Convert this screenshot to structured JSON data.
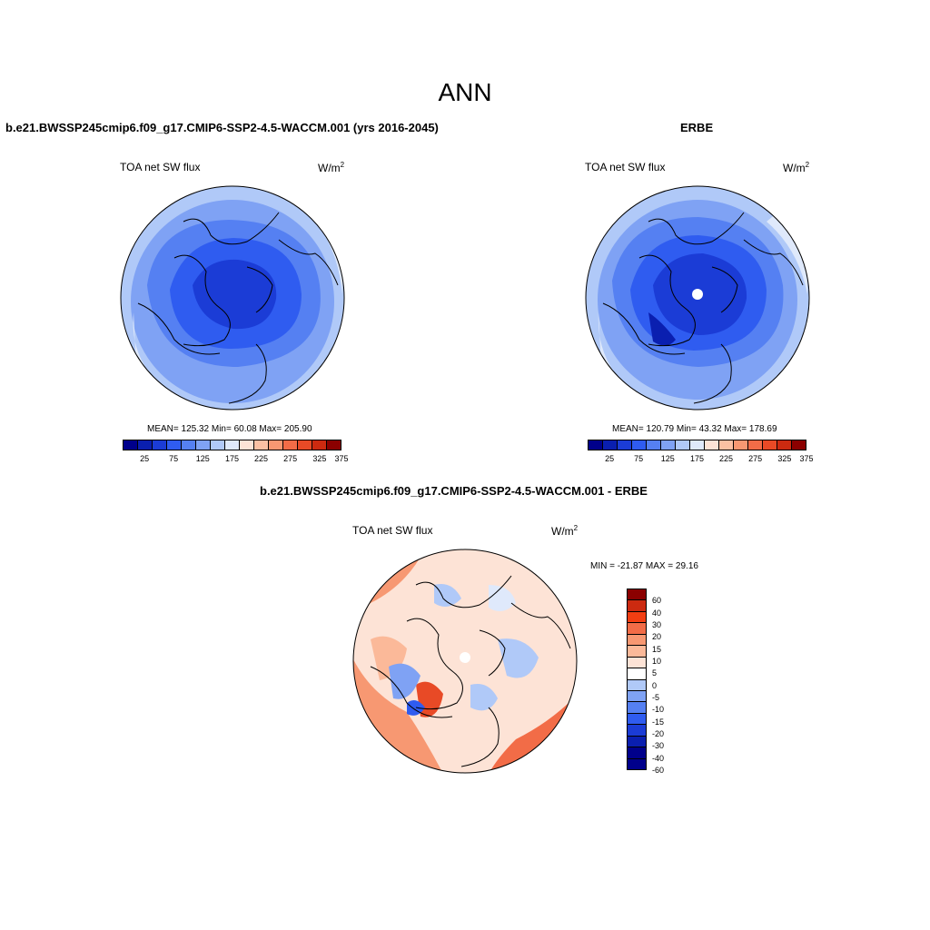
{
  "title": "ANN",
  "panels": [
    {
      "header": "b.e21.BWSSP245cmip6.f09_g17.CMIP6-SSP2-4.5-WACCM.001 (yrs 2016-2045)",
      "variable": "TOA net SW flux",
      "units_base": "W/m",
      "units_exp": "2",
      "stats": "MEAN= 125.32  Min=  60.08  Max= 205.90"
    },
    {
      "header": "ERBE",
      "variable": "TOA net SW flux",
      "units_base": "W/m",
      "units_exp": "2",
      "stats": "MEAN= 120.79  Min=  43.32  Max= 178.69"
    },
    {
      "header": "b.e21.BWSSP245cmip6.f09_g17.CMIP6-SSP2-4.5-WACCM.001 - ERBE",
      "variable": "TOA net SW flux",
      "units_base": "W/m",
      "units_exp": "2",
      "stats": "MIN = -21.87 MAX =  29.16"
    }
  ],
  "colorbar_top": {
    "colors": [
      "#00008b",
      "#0a1fb0",
      "#1b3cd6",
      "#2f5cf0",
      "#5580f2",
      "#7fa2f4",
      "#b0c9f8",
      "#dfe9fb",
      "#fde3d6",
      "#fbc0a3",
      "#f79872",
      "#f26c47",
      "#e84a26",
      "#cc2a10",
      "#8b0000"
    ],
    "labels": [
      "25",
      "75",
      "125",
      "175",
      "225",
      "275",
      "325",
      "375"
    ]
  },
  "colorbar_diff": {
    "colors": [
      "#8b0000",
      "#cc2a10",
      "#f23e12",
      "#f26c47",
      "#f79872",
      "#fbb999",
      "#fde3d6",
      "#ffffff",
      "#b0c9f8",
      "#7fa2f4",
      "#5580f2",
      "#2f5cf0",
      "#1b3cd6",
      "#0a1fb0",
      "#00008b"
    ],
    "labels": [
      "60",
      "40",
      "30",
      "20",
      "15",
      "10",
      "5",
      "0",
      "-5",
      "-10",
      "-15",
      "-20",
      "-30",
      "-40",
      "-60"
    ]
  }
}
